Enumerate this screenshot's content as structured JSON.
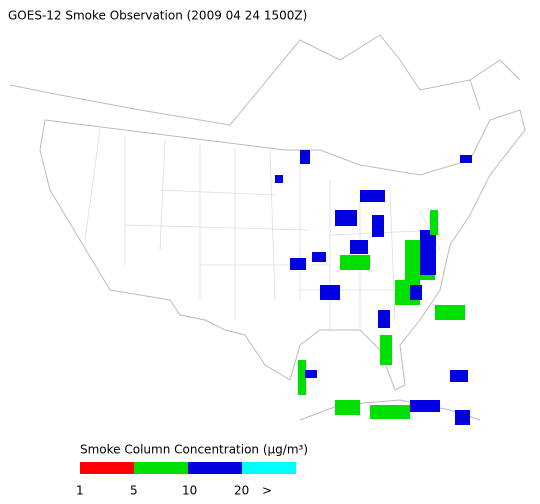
{
  "header": {
    "title": "GOES-12 Smoke Observation (2009 04 24  1500Z)"
  },
  "legend": {
    "title": "Smoke Column Concentration (μg/m³)",
    "colors": [
      "#ff0000",
      "#00e000",
      "#0000e0",
      "#00ffff"
    ],
    "labels": [
      "1",
      "5",
      "10",
      "20",
      ">"
    ]
  }
}
